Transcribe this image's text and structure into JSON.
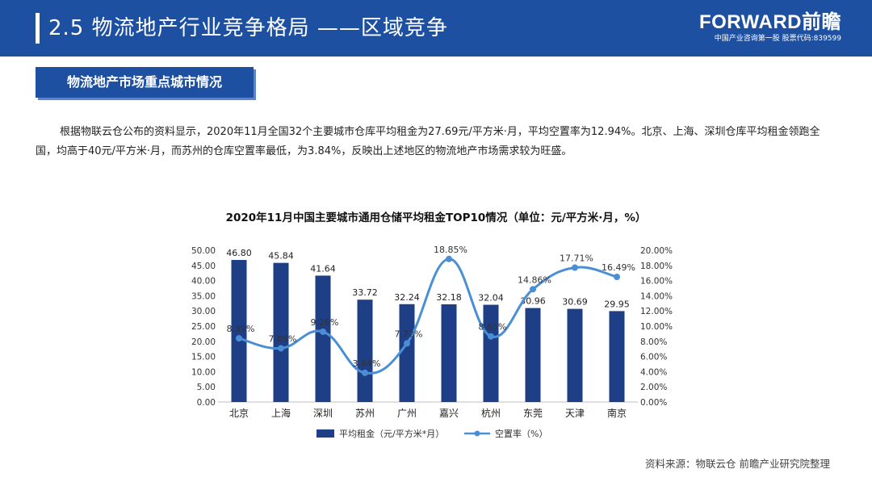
{
  "header": {
    "title": "2.5 物流地产行业竞争格局 ——区域竞争",
    "logo_main": "FORWARD前瞻",
    "logo_sub": "中国产业咨询第一股 股票代码:839599"
  },
  "section_tag": "物流地产市场重点城市情况",
  "intro": "根据物联云仓公布的资料显示，2020年11月全国32个主要城市仓库平均租金为27.69元/平方米·月，平均空置率为12.94%。北京、上海、深圳仓库平均租金领跑全国，均高于40元/平方米·月，而苏州的仓库空置率最低，为3.84%，反映出上述地区的物流地产市场需求较为旺盛。",
  "source": "资料来源：物联云仓  前瞻产业研究院整理",
  "colors": {
    "bar": "#1e3e86",
    "line": "#4a8fd6",
    "header": "#1e50a2"
  },
  "chart_data": {
    "type": "bar",
    "title": "2020年11月中国主要城市通用仓储平均租金TOP10情况（单位：元/平方米·月，%）",
    "categories": [
      "北京",
      "上海",
      "深圳",
      "苏州",
      "广州",
      "嘉兴",
      "杭州",
      "东莞",
      "天津",
      "南京"
    ],
    "series": [
      {
        "name": "平均租金（元/平方米*月）",
        "type": "bar",
        "axis": "left",
        "values": [
          46.8,
          45.84,
          41.64,
          33.72,
          32.24,
          32.18,
          32.04,
          30.96,
          30.69,
          29.95
        ],
        "labels": [
          "46.80",
          "45.84",
          "41.64",
          "33.72",
          "32.24",
          "32.18",
          "32.04",
          "30.96",
          "30.69",
          "29.95"
        ]
      },
      {
        "name": "空置率（%）",
        "type": "line",
        "axis": "right",
        "values": [
          8.39,
          7.08,
          9.26,
          3.84,
          7.72,
          18.85,
          8.65,
          14.86,
          17.71,
          16.49
        ],
        "labels": [
          "8.39%",
          "7.08%",
          "9.26%",
          "3.84%",
          "7.72%",
          "18.85%",
          "8.65%",
          "14.86%",
          "17.71%",
          "16.49%"
        ]
      }
    ],
    "y_left": {
      "range": [
        0,
        50
      ],
      "ticks": [
        "0.00",
        "5.00",
        "10.00",
        "15.00",
        "20.00",
        "25.00",
        "30.00",
        "35.00",
        "40.00",
        "45.00",
        "50.00"
      ]
    },
    "y_right": {
      "range": [
        0,
        20
      ],
      "ticks": [
        "0.00%",
        "2.00%",
        "4.00%",
        "6.00%",
        "8.00%",
        "10.00%",
        "12.00%",
        "14.00%",
        "16.00%",
        "18.00%",
        "20.00%"
      ]
    },
    "legend_position": "bottom",
    "grid": false
  }
}
